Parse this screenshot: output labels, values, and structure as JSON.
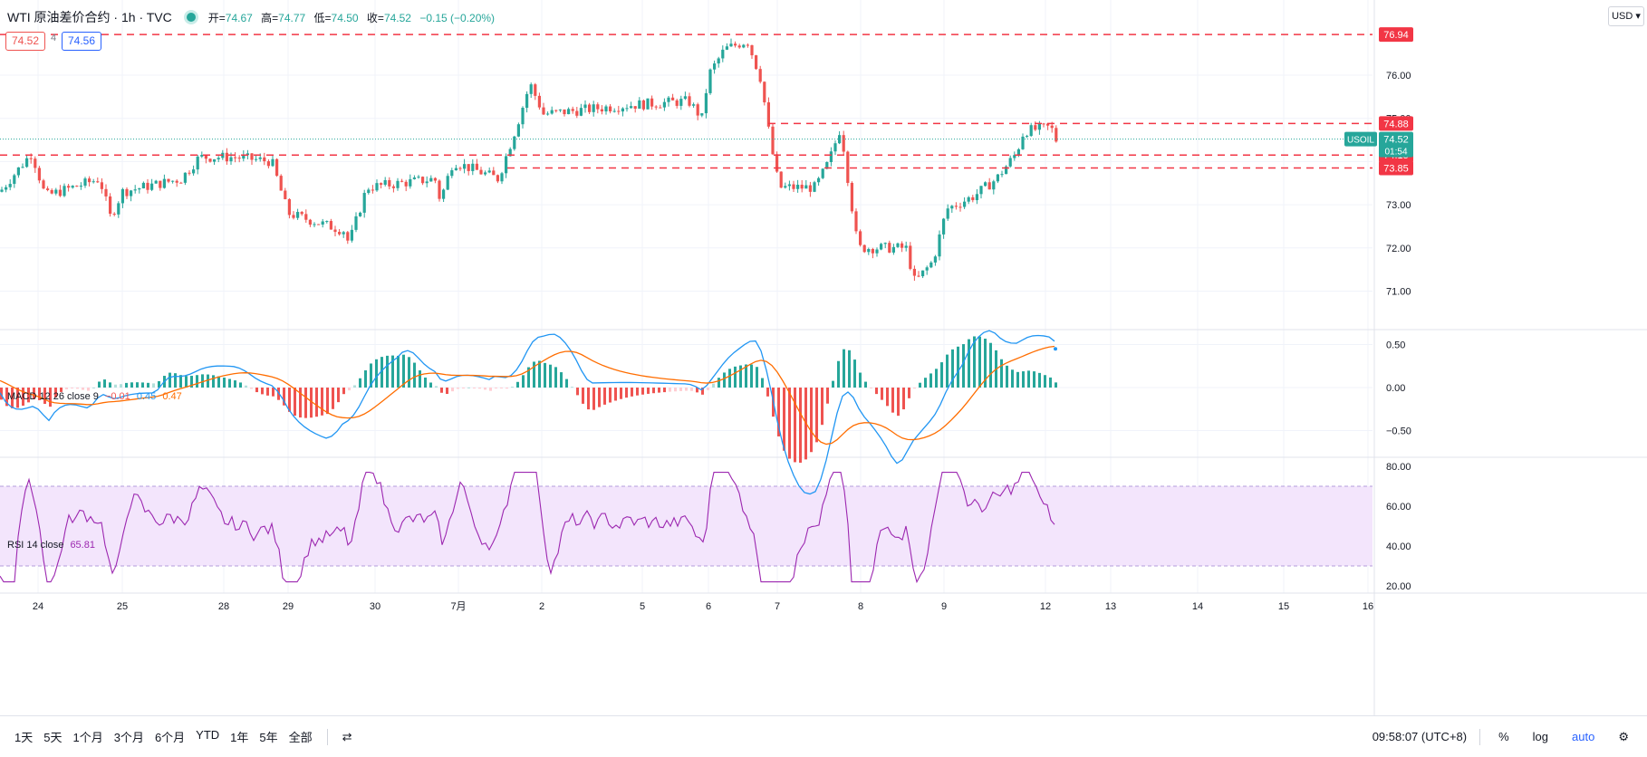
{
  "header": {
    "symbol": "WTI 原油差价合约 · 1h · TVC",
    "open_label": "开=",
    "open": "74.67",
    "high_label": "高=",
    "high": "74.77",
    "low_label": "低=",
    "low": "74.50",
    "close_label": "收=",
    "close": "74.52",
    "change": "−0.15 (−0.20%)"
  },
  "order_boxes": {
    "sell": "74.52",
    "spread": "4",
    "buy": "74.56"
  },
  "currency": "USD",
  "price_axis": {
    "ticks": [
      "76.00",
      "75.00",
      "74.00",
      "73.00",
      "72.00",
      "71.00"
    ]
  },
  "price_labels": {
    "line1": "76.94",
    "line2": "74.88",
    "symbol_tag": "USOIL",
    "current": "74.52",
    "countdown": "01:54",
    "line3": "74.15",
    "line4": "73.85"
  },
  "macd": {
    "label": "MACD 12 26 close 9",
    "hist": "−0.01",
    "macd": "0.45",
    "signal": "0.47",
    "ticks": [
      "0.50",
      "0.00",
      "−0.50"
    ]
  },
  "rsi": {
    "label": "RSI 14 close",
    "value": "65.81",
    "ticks": [
      "80.00",
      "60.00",
      "40.00",
      "20.00"
    ]
  },
  "time_axis": [
    "24",
    "25",
    "28",
    "29",
    "30",
    "7月",
    "2",
    "5",
    "6",
    "7",
    "8",
    "9",
    "12",
    "13",
    "14",
    "15",
    "16"
  ],
  "bottom": {
    "ranges": [
      "1天",
      "5天",
      "1个月",
      "3个月",
      "6个月",
      "YTD",
      "1年",
      "5年",
      "全部"
    ],
    "compare_icon": "compare-icon",
    "clock": "09:58:07 (UTC+8)",
    "percent": "%",
    "log": "log",
    "auto": "auto"
  },
  "colors": {
    "up": "#26a69a",
    "down": "#ef5350",
    "macd": "#2196f3",
    "signal": "#ff6d00",
    "rsi": "#9c27b0",
    "level": "#f23645"
  }
}
